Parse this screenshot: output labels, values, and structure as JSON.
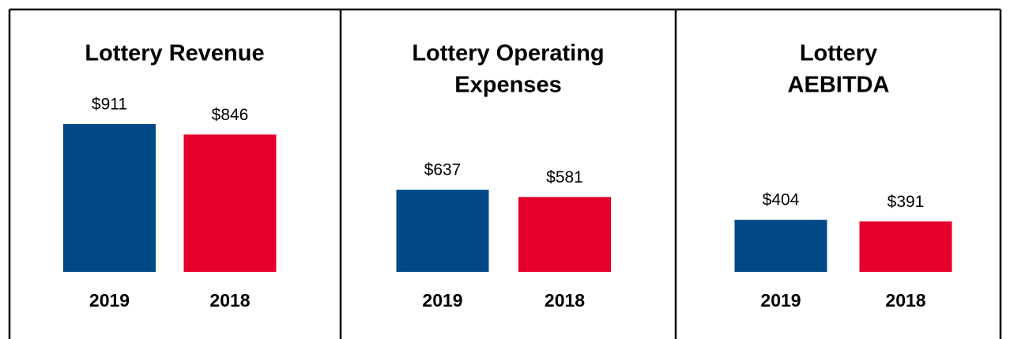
{
  "chart_data": [
    {
      "type": "bar",
      "title": [
        "Lottery Revenue"
      ],
      "categories": [
        "2019",
        "2018"
      ],
      "values": [
        911,
        846
      ],
      "value_labels": [
        "$911",
        "$846"
      ],
      "colors": [
        "#004886",
        "#e4002b"
      ],
      "ylim": [
        0,
        974
      ]
    },
    {
      "type": "bar",
      "title": [
        "Lottery Operating",
        "Expenses"
      ],
      "categories": [
        "2019",
        "2018"
      ],
      "values": [
        637,
        581
      ],
      "value_labels": [
        "$637",
        "$581"
      ],
      "colors": [
        "#004886",
        "#e4002b"
      ],
      "ylim": [
        0,
        1227
      ]
    },
    {
      "type": "bar",
      "title": [
        "Lottery",
        "AEBITDA"
      ],
      "categories": [
        "2019",
        "2018"
      ],
      "values": [
        404,
        391
      ],
      "value_labels": [
        "$404",
        "$391"
      ],
      "colors": [
        "#004886",
        "#e4002b"
      ],
      "ylim": [
        0,
        1227
      ]
    }
  ]
}
